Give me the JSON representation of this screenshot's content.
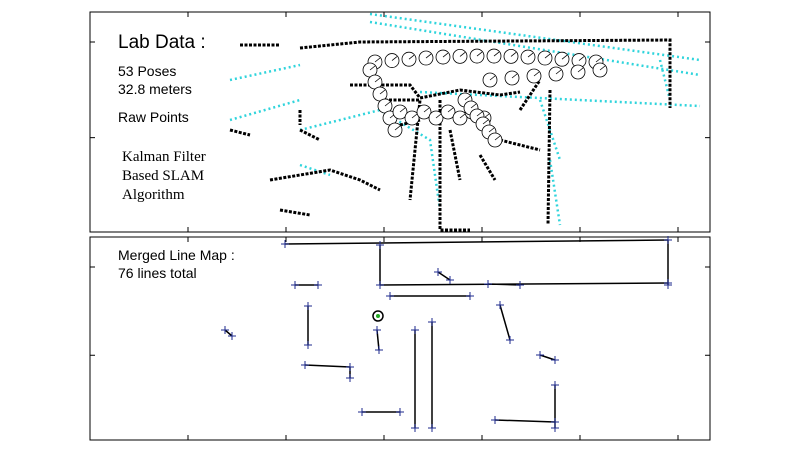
{
  "top_panel": {
    "title": "Lab Data :",
    "poses": "53 Poses",
    "distance": "32.8 meters",
    "legend": "Raw Points",
    "method": [
      "Kalman Filter",
      "Based SLAM",
      "Algorithm"
    ]
  },
  "bottom_panel": {
    "title": "Merged Line Map :",
    "summary": "76 lines total"
  }
}
